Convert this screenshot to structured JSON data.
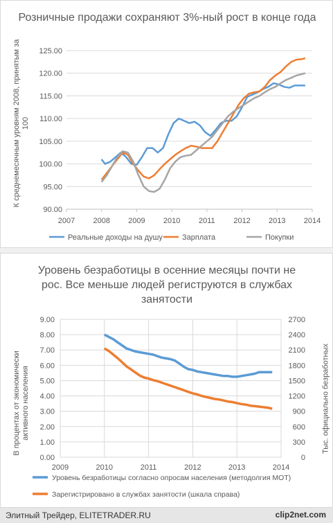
{
  "chart_data": [
    {
      "type": "line",
      "title": "Розничные продажи сохраняют 3%-ный рост в конце года",
      "ylabel": "К среднемесячным уровням 2008, принятым за 100",
      "xlabel": "",
      "xlim": [
        2007,
        2014
      ],
      "ylim": [
        90,
        125
      ],
      "x_ticks": [
        "2007",
        "2008",
        "2009",
        "2010",
        "2011",
        "2012",
        "2013",
        "2014"
      ],
      "y_ticks": [
        "90.00",
        "95.00",
        "100.00",
        "105.00",
        "110.00",
        "115.00",
        "120.00",
        "125.00"
      ],
      "legend_position": "bottom",
      "series": [
        {
          "name": "Реальные доходы на душу",
          "color": "#5b9bd5",
          "x": [
            2008.0,
            2008.1,
            2008.25,
            2008.4,
            2008.55,
            2008.7,
            2008.85,
            2009.0,
            2009.15,
            2009.3,
            2009.45,
            2009.6,
            2009.75,
            2009.9,
            2010.05,
            2010.2,
            2010.35,
            2010.5,
            2010.65,
            2010.8,
            2010.95,
            2011.1,
            2011.25,
            2011.4,
            2011.55,
            2011.7,
            2011.85,
            2012.0,
            2012.15,
            2012.3,
            2012.45,
            2012.6,
            2012.75,
            2012.9,
            2013.05,
            2013.2,
            2013.35,
            2013.5,
            2013.65,
            2013.8
          ],
          "y": [
            101.0,
            100.0,
            100.5,
            101.5,
            102.5,
            101.5,
            100.0,
            99.8,
            101.5,
            103.5,
            103.5,
            102.5,
            103.5,
            106.5,
            109.0,
            110.0,
            109.5,
            109.0,
            109.3,
            108.5,
            107.0,
            106.2,
            107.5,
            109.0,
            109.5,
            109.5,
            110.5,
            112.5,
            114.8,
            115.3,
            115.8,
            116.5,
            117.0,
            117.8,
            117.5,
            117.0,
            116.8,
            117.3,
            null,
            null
          ],
          "y_display": [
            101.0,
            100.0,
            100.5,
            101.5,
            102.5,
            101.5,
            100.0,
            99.8,
            101.5,
            103.5,
            103.5,
            102.5,
            103.5,
            106.5,
            109.0,
            110.0,
            109.5,
            109.0,
            109.3,
            108.5,
            107.0,
            106.2,
            107.5,
            109.0,
            109.5,
            109.5,
            110.5,
            112.5,
            114.8,
            115.3,
            115.8,
            116.5,
            117.0,
            117.8,
            117.5,
            117.0,
            116.8,
            117.3,
            117.3,
            117.3
          ]
        },
        {
          "name": "Зарплата",
          "color": "#ed7d31",
          "x": [
            2008.0,
            2008.15,
            2008.3,
            2008.45,
            2008.6,
            2008.75,
            2008.9,
            2009.05,
            2009.2,
            2009.35,
            2009.5,
            2009.65,
            2009.8,
            2009.95,
            2010.1,
            2010.25,
            2010.4,
            2010.55,
            2010.7,
            2010.85,
            2011.0,
            2011.15,
            2011.3,
            2011.45,
            2011.6,
            2011.75,
            2011.9,
            2012.05,
            2012.2,
            2012.35,
            2012.5,
            2012.65,
            2012.8,
            2012.95,
            2013.1,
            2013.25,
            2013.4,
            2013.55,
            2013.7,
            2013.8
          ],
          "y": [
            96.5,
            98.0,
            99.5,
            101.0,
            102.5,
            102.0,
            100.0,
            98.5,
            97.2,
            96.8,
            97.5,
            98.8,
            100.0,
            101.0,
            102.0,
            102.8,
            103.5,
            104.0,
            103.8,
            103.5,
            103.5,
            103.5,
            105.0,
            107.0,
            109.0,
            111.0,
            113.0,
            114.5,
            115.5,
            115.8,
            116.0,
            117.0,
            118.5,
            119.5,
            120.3,
            121.5,
            122.5,
            123.0,
            123.1,
            123.3
          ]
        },
        {
          "name": "Покупки",
          "color": "#a5a5a5",
          "x": [
            2008.0,
            2008.15,
            2008.3,
            2008.45,
            2008.6,
            2008.75,
            2008.9,
            2009.05,
            2009.2,
            2009.35,
            2009.5,
            2009.65,
            2009.8,
            2009.95,
            2010.1,
            2010.25,
            2010.4,
            2010.55,
            2010.7,
            2010.85,
            2011.0,
            2011.15,
            2011.3,
            2011.45,
            2011.6,
            2011.75,
            2011.9,
            2012.05,
            2012.2,
            2012.35,
            2012.5,
            2012.65,
            2012.8,
            2012.95,
            2013.1,
            2013.25,
            2013.4,
            2013.55,
            2013.7,
            2013.8
          ],
          "y": [
            96.0,
            97.5,
            99.5,
            101.5,
            102.8,
            102.5,
            100.5,
            97.5,
            95.0,
            94.0,
            93.8,
            94.5,
            96.5,
            99.0,
            100.5,
            101.5,
            101.8,
            102.0,
            103.0,
            104.0,
            105.0,
            106.0,
            107.5,
            109.0,
            110.5,
            111.5,
            112.3,
            113.0,
            113.8,
            114.5,
            115.0,
            115.8,
            116.5,
            117.0,
            117.8,
            118.5,
            119.0,
            119.5,
            119.8,
            120.0
          ]
        }
      ]
    },
    {
      "type": "line",
      "title": "Уровень безработицы в осенние месяцы почти не рос. Все меньше людей региструются в службах занятости",
      "ylabel": "В процентах от экономически активного населения",
      "ylabel_right": "Тыс. официально безработных",
      "xlabel": "",
      "xlim": [
        2009,
        2014
      ],
      "ylim": [
        0,
        9
      ],
      "ylim_right": [
        0,
        2700
      ],
      "x_ticks": [
        "2009",
        "2010",
        "2011",
        "2012",
        "2013",
        "2014"
      ],
      "y_ticks": [
        "0.00",
        "1.00",
        "2.00",
        "3.00",
        "4.00",
        "5.00",
        "6.00",
        "7.00",
        "8.00",
        "9.00"
      ],
      "y_ticks_right": [
        "0",
        "300",
        "600",
        "900",
        "1200",
        "1500",
        "1800",
        "2100",
        "2400",
        "2700"
      ],
      "legend_position": "bottom",
      "series": [
        {
          "name": "Уровень безработицы согласно опросам населения (методолгия МОТ)",
          "color": "#5b9bd5",
          "axis": "left",
          "x": [
            2010.0,
            2010.1,
            2010.2,
            2010.3,
            2010.4,
            2010.5,
            2010.6,
            2010.7,
            2010.8,
            2010.9,
            2011.0,
            2011.1,
            2011.2,
            2011.3,
            2011.4,
            2011.5,
            2011.6,
            2011.7,
            2011.8,
            2011.9,
            2012.0,
            2012.1,
            2012.2,
            2012.3,
            2012.4,
            2012.5,
            2012.6,
            2012.7,
            2012.8,
            2012.9,
            2013.0,
            2013.1,
            2013.2,
            2013.3,
            2013.4,
            2013.5,
            2013.6,
            2013.7,
            2013.8
          ],
          "y": [
            8.0,
            7.85,
            7.7,
            7.5,
            7.3,
            7.1,
            7.0,
            6.9,
            6.85,
            6.8,
            6.75,
            6.7,
            6.6,
            6.5,
            6.45,
            6.4,
            6.3,
            6.1,
            5.9,
            5.75,
            5.7,
            5.6,
            5.55,
            5.5,
            5.45,
            5.4,
            5.35,
            5.3,
            5.3,
            5.25,
            5.25,
            5.3,
            5.35,
            5.4,
            5.45,
            5.55,
            5.55,
            5.55,
            5.55
          ]
        },
        {
          "name": "Зарегистрировано в службах занятости (шкала справа)",
          "color": "#ed7d31",
          "axis": "right",
          "x": [
            2010.0,
            2010.1,
            2010.2,
            2010.3,
            2010.4,
            2010.5,
            2010.6,
            2010.7,
            2010.8,
            2010.9,
            2011.0,
            2011.1,
            2011.2,
            2011.3,
            2011.4,
            2011.5,
            2011.6,
            2011.7,
            2011.8,
            2011.9,
            2012.0,
            2012.1,
            2012.2,
            2012.3,
            2012.4,
            2012.5,
            2012.6,
            2012.7,
            2012.8,
            2012.9,
            2013.0,
            2013.1,
            2013.2,
            2013.3,
            2013.4,
            2013.5,
            2013.6,
            2013.7,
            2013.8
          ],
          "y": [
            2130,
            2080,
            2010,
            1940,
            1860,
            1780,
            1720,
            1660,
            1600,
            1560,
            1540,
            1510,
            1490,
            1460,
            1430,
            1400,
            1370,
            1340,
            1310,
            1280,
            1250,
            1230,
            1200,
            1180,
            1160,
            1140,
            1130,
            1110,
            1090,
            1080,
            1060,
            1040,
            1030,
            1010,
            1000,
            990,
            980,
            970,
            950
          ]
        }
      ]
    }
  ],
  "footer": {
    "text": "Элитный Трейдер, ELITETRADER.RU",
    "logo": "clip2net.com"
  }
}
